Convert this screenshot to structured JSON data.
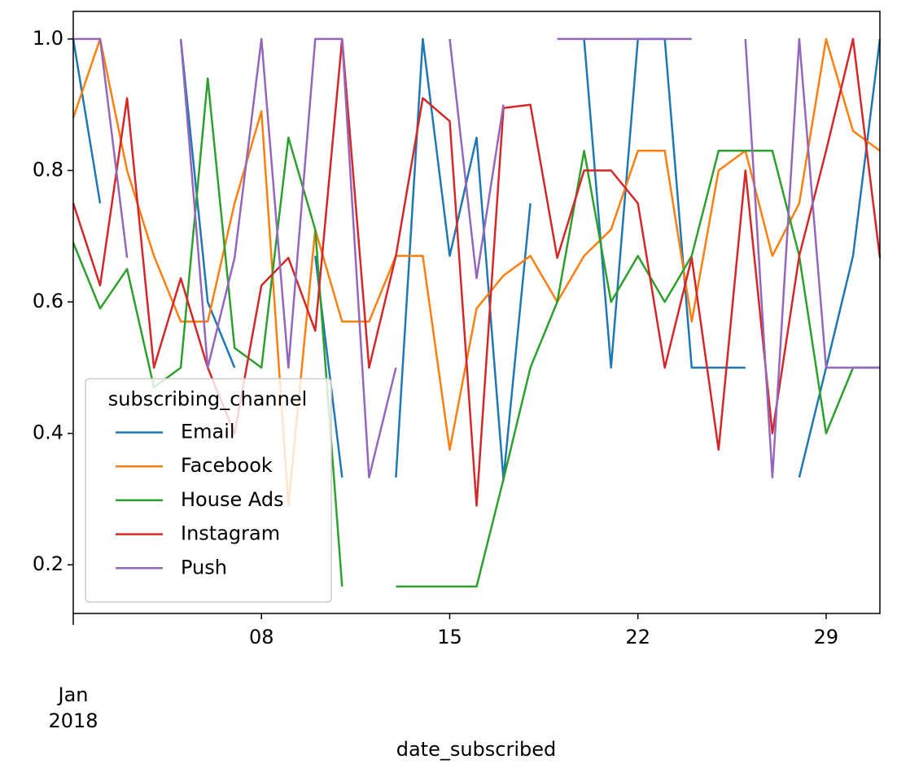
{
  "chart_data": {
    "type": "line",
    "x_label": "date_subscribed",
    "legend_title": "subscribing_channel",
    "legend": "lower left",
    "x": [
      "2018-01-01",
      "2018-01-02",
      "2018-01-03",
      "2018-01-04",
      "2018-01-05",
      "2018-01-06",
      "2018-01-07",
      "2018-01-08",
      "2018-01-09",
      "2018-01-10",
      "2018-01-11",
      "2018-01-12",
      "2018-01-13",
      "2018-01-14",
      "2018-01-15",
      "2018-01-16",
      "2018-01-17",
      "2018-01-18",
      "2018-01-19",
      "2018-01-20",
      "2018-01-21",
      "2018-01-22",
      "2018-01-23",
      "2018-01-24",
      "2018-01-25",
      "2018-01-26",
      "2018-01-27",
      "2018-01-28",
      "2018-01-29",
      "2018-01-30",
      "2018-01-31"
    ],
    "xlim": [
      "2018-01-01",
      "2018-01-31"
    ],
    "xticks": [
      {
        "value": "2018-01-08",
        "label": "08"
      },
      {
        "value": "2018-01-15",
        "label": "15"
      },
      {
        "value": "2018-01-22",
        "label": "22"
      },
      {
        "value": "2018-01-29",
        "label": "29"
      }
    ],
    "xticks_major": [
      {
        "value": "2018-01-01",
        "label": "Jan\n2018"
      }
    ],
    "ylim": [
      0.126,
      1.042
    ],
    "yticks": [
      0.2,
      0.4,
      0.6,
      0.8,
      {
        "value": 1,
        "label": "1.0"
      }
    ],
    "series": [
      {
        "name": "Email",
        "color": "#1f77b4",
        "values": [
          1.0,
          0.75,
          null,
          null,
          1.0,
          0.6,
          0.5,
          null,
          null,
          0.67,
          0.333,
          null,
          0.333,
          1.0,
          0.67,
          0.85,
          0.33,
          0.75,
          null,
          1.0,
          0.5,
          1.0,
          1.0,
          0.5,
          0.5,
          0.5,
          null,
          0.333,
          0.5,
          0.67,
          1.0
        ]
      },
      {
        "name": "Facebook",
        "color": "#ff7f0e",
        "values": [
          0.88,
          1.0,
          0.8,
          0.67,
          0.57,
          0.57,
          0.75,
          0.89,
          0.29,
          0.71,
          0.57,
          0.57,
          0.67,
          0.67,
          0.375,
          0.59,
          0.64,
          0.67,
          0.6,
          0.67,
          0.71,
          0.83,
          0.83,
          0.57,
          0.8,
          0.83,
          0.67,
          0.75,
          1.0,
          0.86,
          0.83
        ]
      },
      {
        "name": "House Ads",
        "color": "#2ca02c",
        "values": [
          0.69,
          0.59,
          0.65,
          0.47,
          0.5,
          0.94,
          0.53,
          0.5,
          0.85,
          0.71,
          0.167,
          null,
          0.167,
          0.167,
          0.167,
          0.167,
          0.33,
          0.5,
          0.6,
          0.83,
          0.6,
          0.67,
          0.6,
          0.67,
          0.83,
          0.83,
          0.83,
          0.67,
          0.4,
          0.5,
          0.5
        ]
      },
      {
        "name": "Instagram",
        "color": "#d62728",
        "values": [
          0.75,
          0.625,
          0.91,
          0.5,
          0.636,
          0.5,
          0.4,
          0.625,
          0.667,
          0.556,
          1.0,
          0.5,
          0.67,
          0.91,
          0.875,
          0.29,
          0.895,
          0.9,
          0.667,
          0.8,
          0.8,
          0.75,
          0.5,
          0.667,
          0.375,
          0.8,
          0.4,
          0.67,
          0.83,
          1.0,
          0.667
        ]
      },
      {
        "name": "Push",
        "color": "#9467bd",
        "values": [
          1.0,
          1.0,
          0.667,
          null,
          1.0,
          0.5,
          0.667,
          1.0,
          0.5,
          1.0,
          1.0,
          0.333,
          0.5,
          null,
          1.0,
          0.636,
          0.9,
          null,
          1.0,
          1.0,
          1.0,
          1.0,
          1.0,
          1.0,
          null,
          1.0,
          0.333,
          1.0,
          0.5,
          0.5,
          0.5
        ]
      }
    ]
  }
}
